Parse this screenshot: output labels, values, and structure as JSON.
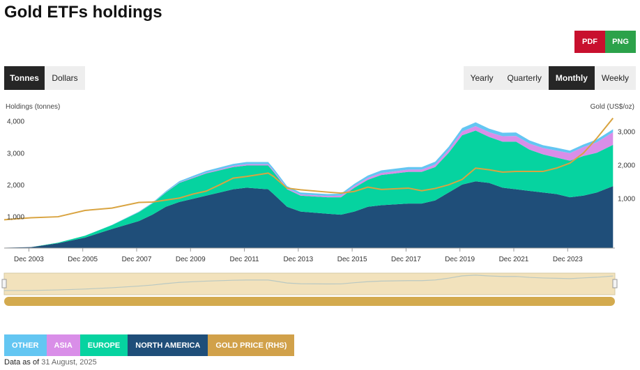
{
  "header": {
    "title": "Gold ETFs holdings"
  },
  "export": {
    "pdf_label": "PDF",
    "png_label": "PNG"
  },
  "unit_toggle": {
    "options": [
      "Tonnes",
      "Dollars"
    ],
    "active": "Tonnes"
  },
  "period_toggle": {
    "options": [
      "Yearly",
      "Quarterly",
      "Monthly",
      "Weekly"
    ],
    "active": "Monthly"
  },
  "footer": {
    "label": "Data as of",
    "date": "31 August, 2025"
  },
  "colors": {
    "other": "#63c6f2",
    "asia": "#d98ee8",
    "europe": "#06d3a0",
    "north_america": "#1f4e79",
    "gold_price": "#d9a441",
    "gold_legend": "#d1a14a",
    "navigator_band": "#f2e2bc",
    "scrollbar": "#d3aa4e"
  },
  "chart_data": {
    "type": "area",
    "left_axis_title": "Holdings (tonnes)",
    "right_axis_title": "Gold (US$/oz)",
    "y_left_ticks": [
      "1,000",
      "2,000",
      "3,000",
      "4,000"
    ],
    "y_right_ticks": [
      "1,000",
      "2,000",
      "3,000"
    ],
    "x_tick_labels": [
      "Dec 2003",
      "Dec 2005",
      "Dec 2007",
      "Dec 2009",
      "Dec 2011",
      "Dec 2013",
      "Dec 2015",
      "Dec 2017",
      "Dec 2019",
      "Dec 2021",
      "Dec 2023"
    ],
    "x_range": [
      "2003-01",
      "2025-08"
    ],
    "y_left_range": [
      0,
      4300
    ],
    "y_right_range": [
      -500,
      3600
    ],
    "grid": false,
    "legend_placement": "bottom-left",
    "legend": [
      "OTHER",
      "ASIA",
      "EUROPE",
      "NORTH AMERICA",
      "GOLD PRICE (RHS)"
    ],
    "x": [
      2003.0,
      2004.0,
      2005.0,
      2006.0,
      2007.0,
      2008.0,
      2008.5,
      2009.0,
      2009.5,
      2010.0,
      2010.5,
      2011.0,
      2011.5,
      2012.0,
      2012.8,
      2013.0,
      2013.5,
      2014.0,
      2015.0,
      2015.5,
      2016.0,
      2016.5,
      2017.0,
      2018.0,
      2018.5,
      2019.0,
      2019.5,
      2020.0,
      2020.5,
      2021.0,
      2021.5,
      2022.0,
      2022.5,
      2023.0,
      2023.5,
      2024.0,
      2024.5,
      2025.0,
      2025.6
    ],
    "series": [
      {
        "name": "NORTH AMERICA",
        "stack": true,
        "values": [
          10,
          30,
          150,
          330,
          600,
          850,
          1050,
          1300,
          1450,
          1550,
          1650,
          1750,
          1850,
          1900,
          1850,
          1700,
          1300,
          1150,
          1080,
          1050,
          1150,
          1300,
          1350,
          1400,
          1400,
          1500,
          1750,
          2000,
          2100,
          2050,
          1900,
          1850,
          1800,
          1750,
          1700,
          1600,
          1650,
          1750,
          1950
        ]
      },
      {
        "name": "EUROPE",
        "stack": true,
        "values": [
          0,
          0,
          20,
          60,
          120,
          280,
          350,
          450,
          600,
          650,
          700,
          700,
          700,
          700,
          750,
          700,
          550,
          500,
          520,
          550,
          750,
          850,
          950,
          1000,
          1000,
          1050,
          1250,
          1550,
          1600,
          1450,
          1450,
          1500,
          1300,
          1200,
          1150,
          1150,
          1250,
          1250,
          1300
        ]
      },
      {
        "name": "ASIA",
        "stack": true,
        "values": [
          0,
          0,
          0,
          0,
          0,
          5,
          5,
          10,
          15,
          20,
          25,
          30,
          35,
          40,
          40,
          40,
          40,
          40,
          40,
          50,
          55,
          60,
          65,
          70,
          70,
          80,
          90,
          120,
          140,
          150,
          170,
          180,
          190,
          200,
          220,
          240,
          280,
          330,
          400
        ]
      },
      {
        "name": "OTHER",
        "stack": true,
        "values": [
          0,
          0,
          0,
          0,
          10,
          15,
          20,
          30,
          40,
          50,
          55,
          60,
          65,
          70,
          70,
          70,
          60,
          60,
          60,
          60,
          70,
          75,
          80,
          80,
          80,
          90,
          100,
          110,
          120,
          110,
          110,
          110,
          100,
          90,
          90,
          80,
          80,
          90,
          90
        ]
      },
      {
        "name": "GOLD PRICE (RHS)",
        "stack": false,
        "axis": "right",
        "values": [
          350,
          410,
          440,
          630,
          700,
          870,
          880,
          940,
          1000,
          1120,
          1210,
          1400,
          1600,
          1650,
          1750,
          1650,
          1300,
          1250,
          1180,
          1150,
          1200,
          1330,
          1260,
          1300,
          1220,
          1290,
          1400,
          1560,
          1900,
          1850,
          1780,
          1800,
          1800,
          1800,
          1900,
          2050,
          2350,
          2800,
          3400
        ]
      }
    ]
  }
}
